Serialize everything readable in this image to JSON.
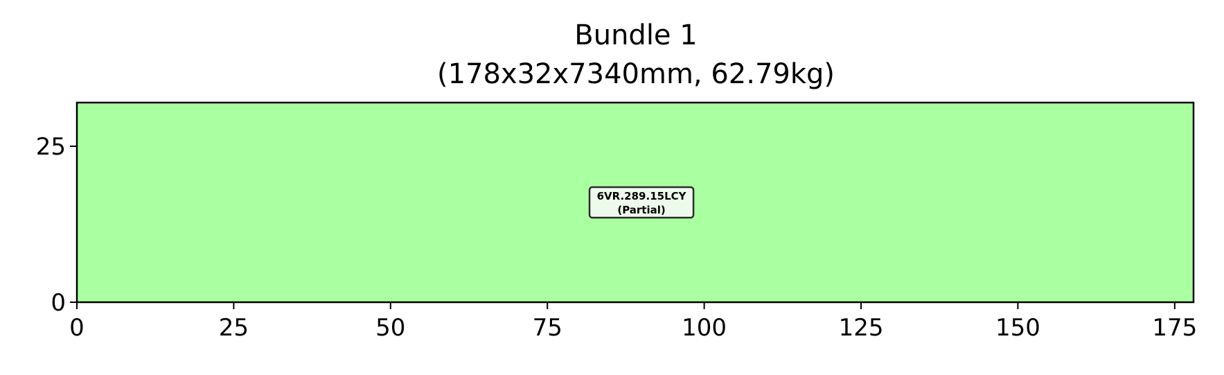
{
  "chart_data": {
    "type": "bar",
    "title": "Bundle 1",
    "subtitle": "(178x32x7340mm, 62.79kg)",
    "xlim": [
      0,
      178
    ],
    "ylim": [
      0,
      32
    ],
    "x_ticks": [
      0,
      25,
      50,
      75,
      100,
      125,
      150,
      175
    ],
    "y_ticks": [
      0,
      25
    ],
    "grid": false,
    "items": [
      {
        "x": [
          0,
          178
        ],
        "y": [
          0,
          32
        ],
        "fill": "#aaffa0",
        "label_line1": "6VR.289.15LCY",
        "label_line2": "(Partial)",
        "label_center": [
          90,
          16
        ]
      }
    ],
    "colors": {
      "item_fill": "#aaffa0",
      "label_box_fill": "#eefbec",
      "label_box_stroke": "#2b2b2b",
      "axis": "#000000"
    }
  }
}
